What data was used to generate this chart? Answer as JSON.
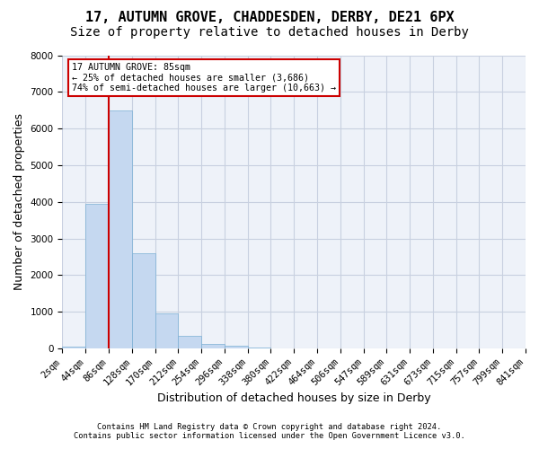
{
  "title_line1": "17, AUTUMN GROVE, CHADDESDEN, DERBY, DE21 6PX",
  "title_line2": "Size of property relative to detached houses in Derby",
  "xlabel": "Distribution of detached houses by size in Derby",
  "ylabel": "Number of detached properties",
  "footer_line1": "Contains HM Land Registry data © Crown copyright and database right 2024.",
  "footer_line2": "Contains public sector information licensed under the Open Government Licence v3.0.",
  "bin_labels": [
    "2sqm",
    "44sqm",
    "86sqm",
    "128sqm",
    "170sqm",
    "212sqm",
    "254sqm",
    "296sqm",
    "338sqm",
    "380sqm",
    "422sqm",
    "464sqm",
    "506sqm",
    "547sqm",
    "589sqm",
    "631sqm",
    "673sqm",
    "715sqm",
    "757sqm",
    "799sqm",
    "841sqm"
  ],
  "bar_values": [
    50,
    3950,
    6500,
    2600,
    950,
    350,
    130,
    80,
    30,
    5,
    3,
    2,
    1,
    0,
    0,
    0,
    0,
    0,
    0,
    0
  ],
  "bar_color": "#c5d8f0",
  "bar_edge_color": "#7bafd4",
  "property_line_x": 2.0,
  "property_line_label": "17 AUTUMN GROVE: 85sqm",
  "annotation_line1": "← 25% of detached houses are smaller (3,686)",
  "annotation_line2": "74% of semi-detached houses are larger (10,663) →",
  "annotation_box_color": "#ffffff",
  "annotation_box_edge_color": "#cc0000",
  "line_color": "#cc0000",
  "ylim": [
    0,
    8000
  ],
  "yticks": [
    0,
    1000,
    2000,
    3000,
    4000,
    5000,
    6000,
    7000,
    8000
  ],
  "grid_color": "#c8d0e0",
  "background_color": "#eef2f9",
  "title_fontsize": 11,
  "subtitle_fontsize": 10,
  "axis_label_fontsize": 9,
  "tick_fontsize": 7.5
}
